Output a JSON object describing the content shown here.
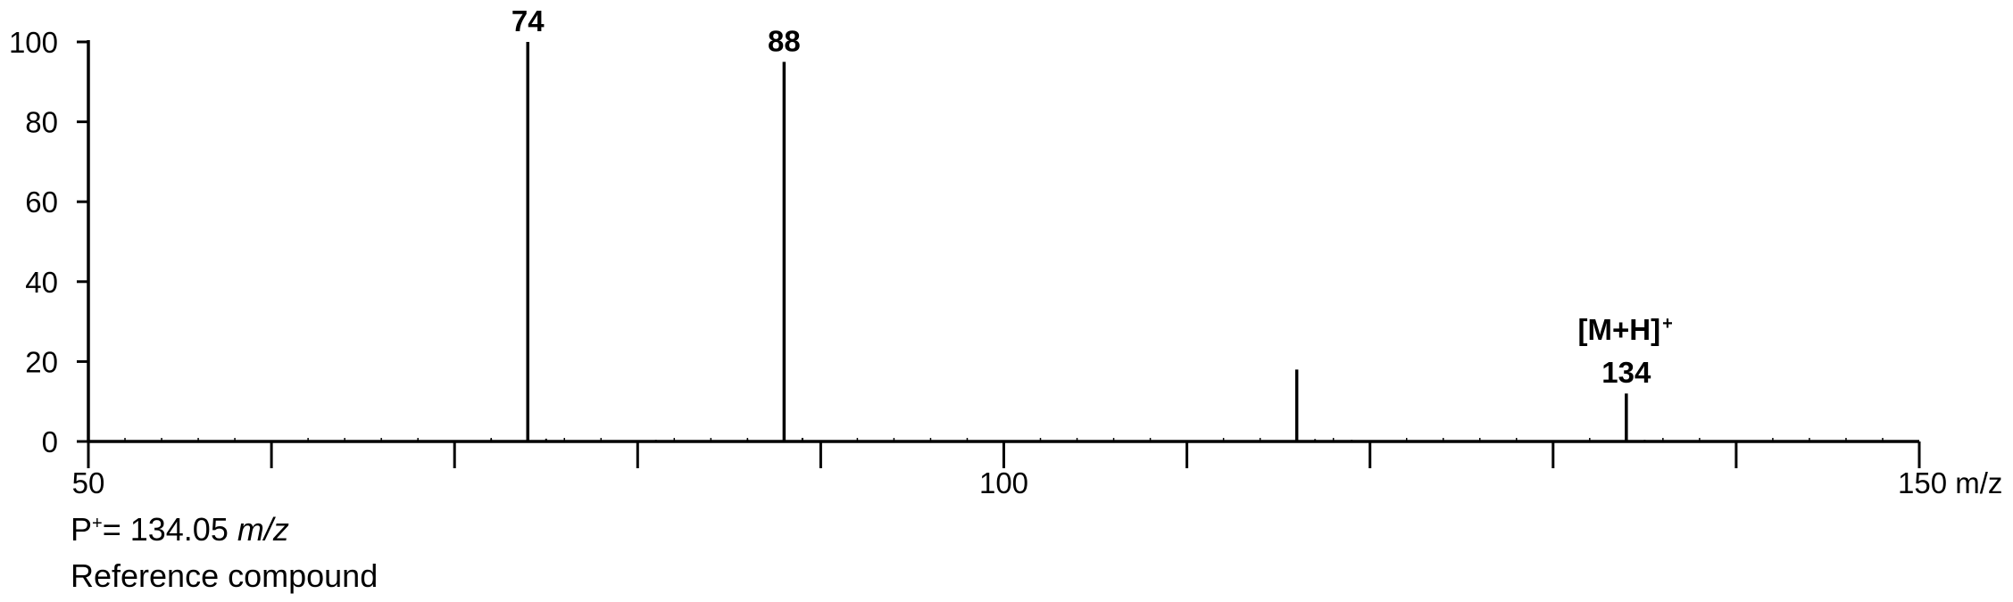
{
  "chart_data": {
    "type": "bar",
    "xlim": [
      50,
      150
    ],
    "ylim": [
      0,
      100
    ],
    "x_ticks": [
      50,
      100,
      150
    ],
    "x_tick_labels": [
      "50",
      "100",
      "150 m/z"
    ],
    "y_ticks": [
      0,
      20,
      40,
      60,
      80,
      100
    ],
    "y_tick_labels": [
      "0",
      "20",
      "40",
      "60",
      "80",
      "100"
    ],
    "peaks": [
      {
        "mz": 74,
        "intensity": 100,
        "label": "74"
      },
      {
        "mz": 88,
        "intensity": 95,
        "label": "88"
      },
      {
        "mz": 116,
        "intensity": 18,
        "label": ""
      },
      {
        "mz": 134,
        "intensity": 12,
        "label": "134",
        "annotation": "[M+H]",
        "annotation_superscript": "+"
      }
    ],
    "baseline_noise": [
      {
        "mz": 55,
        "intensity": 0.3
      },
      {
        "mz": 58,
        "intensity": 0.2
      },
      {
        "mz": 61,
        "intensity": 0.2
      },
      {
        "mz": 67,
        "intensity": 0.3
      },
      {
        "mz": 68,
        "intensity": 0.4
      },
      {
        "mz": 69,
        "intensity": 0.3
      },
      {
        "mz": 72,
        "intensity": 0.6
      },
      {
        "mz": 75,
        "intensity": 0.7
      },
      {
        "mz": 77,
        "intensity": 0.3
      },
      {
        "mz": 78,
        "intensity": 0.3
      },
      {
        "mz": 81,
        "intensity": 0.4
      },
      {
        "mz": 86,
        "intensity": 0.5
      },
      {
        "mz": 89,
        "intensity": 0.9
      },
      {
        "mz": 90,
        "intensity": 0.3
      },
      {
        "mz": 94,
        "intensity": 0.3
      },
      {
        "mz": 102,
        "intensity": 0.3
      },
      {
        "mz": 105,
        "intensity": 0.3
      },
      {
        "mz": 109,
        "intensity": 0.3
      },
      {
        "mz": 117,
        "intensity": 0.6
      },
      {
        "mz": 119,
        "intensity": 0.4
      },
      {
        "mz": 130,
        "intensity": 0.3
      },
      {
        "mz": 135,
        "intensity": 0.4
      }
    ],
    "color": "#000000"
  },
  "caption": {
    "precursor_prefix": "P",
    "precursor_superscript": "+",
    "precursor_value": "= 134.05 ",
    "precursor_unit": "m/z",
    "description": "Reference compound"
  }
}
